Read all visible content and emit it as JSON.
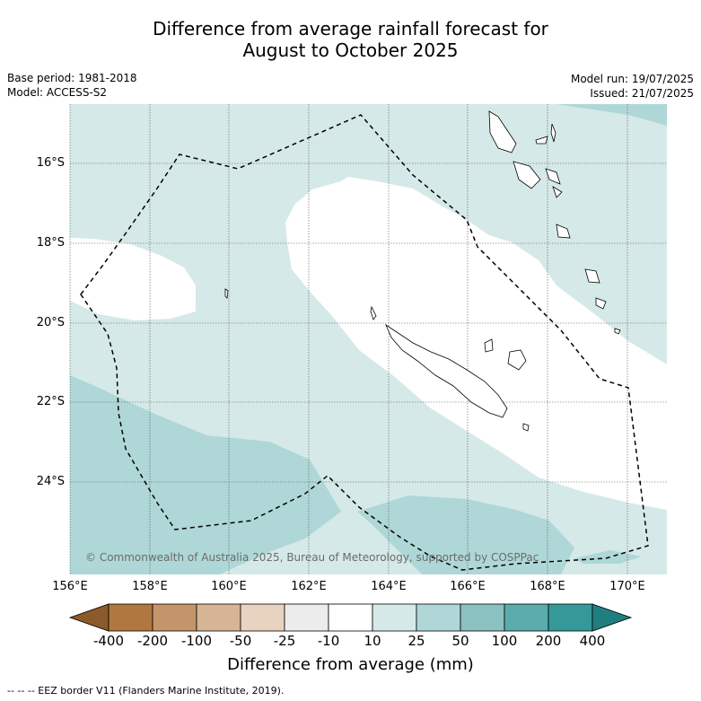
{
  "title_line1": "Difference from average rainfall forecast for",
  "title_line2": "August to October 2025",
  "base_period": "Base period: 1981-2018",
  "model": "Model: ACCESS-S2",
  "model_run": "Model run: 19/07/2025",
  "issued": "Issued: 21/07/2025",
  "copyright": "© Commonwealth of Australia 2025, Bureau of Meteorology, supported by COSPPac",
  "lon_ticks": [
    "156°E",
    "158°E",
    "160°E",
    "162°E",
    "164°E",
    "166°E",
    "168°E",
    "170°E"
  ],
  "lat_ticks": [
    "16°S",
    "18°S",
    "20°S",
    "22°S",
    "24°S"
  ],
  "colorbar": {
    "labels": [
      "-400",
      "-200",
      "-100",
      "-50",
      "-25",
      "-10",
      "10",
      "25",
      "50",
      "100",
      "200",
      "400"
    ],
    "colors": [
      "#8c5a2a",
      "#b07840",
      "#c4956a",
      "#d6b597",
      "#e8d3c0",
      "#ececec",
      "#ffffff",
      "#d5e9e8",
      "#afd7d7",
      "#8bc1c1",
      "#5aacac",
      "#35999a",
      "#1f7f80"
    ],
    "title": "Difference from average (mm)"
  },
  "footnote": "--  --  -- EEZ border V11 (Flanders Marine Institute, 2019)."
}
